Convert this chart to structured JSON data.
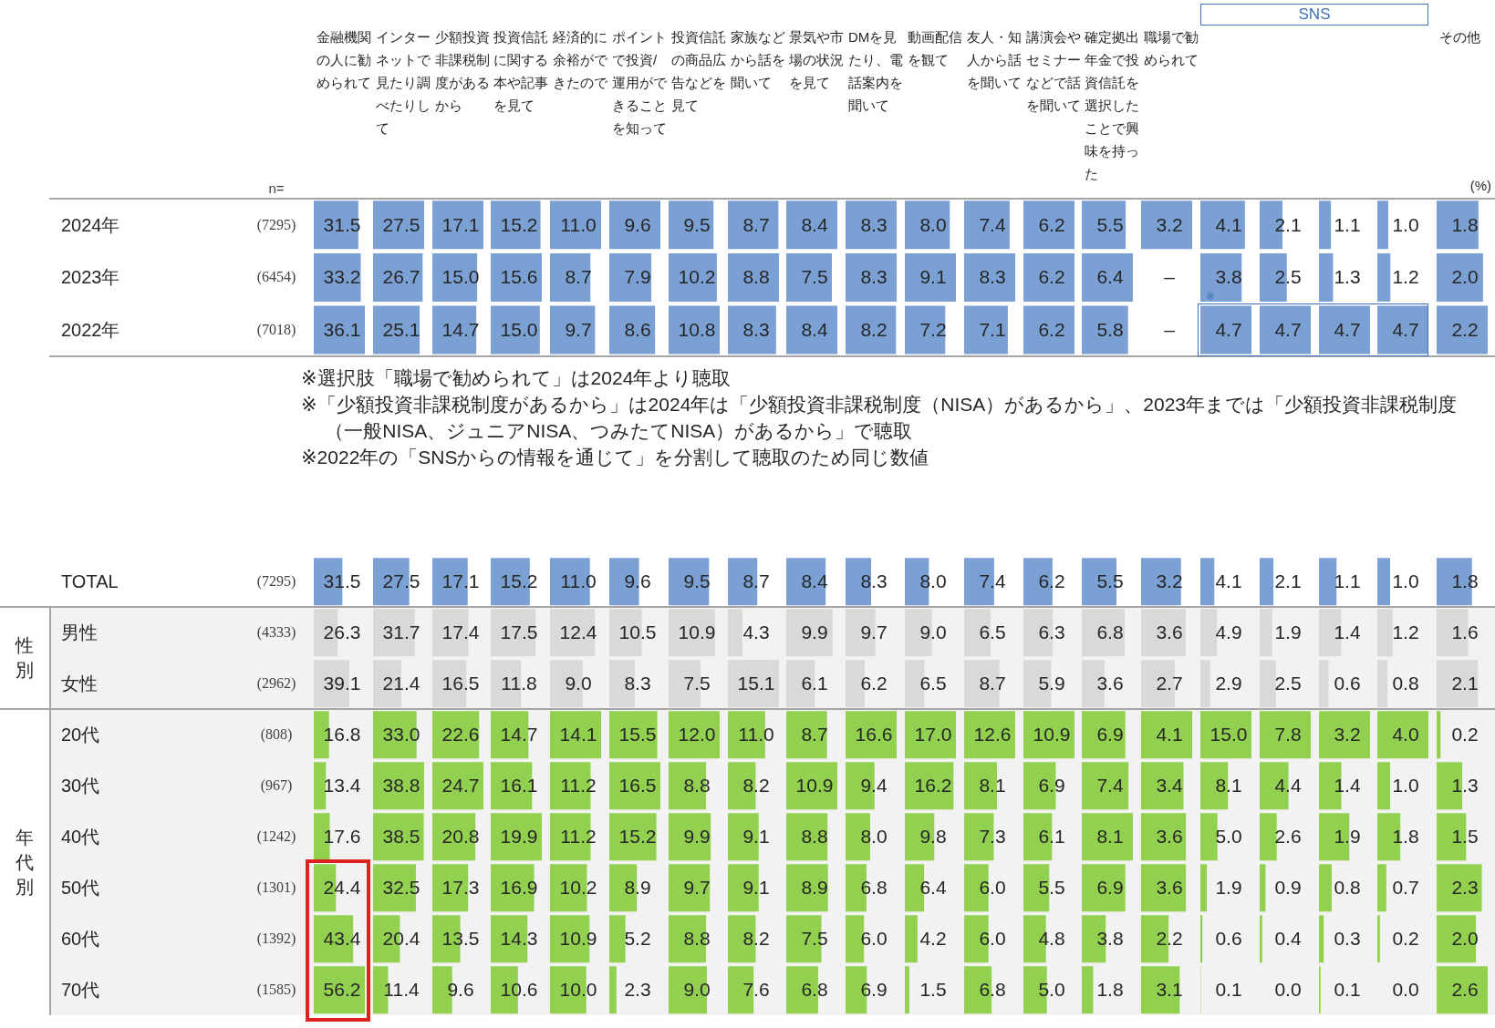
{
  "chart_data": [
    {
      "type": "bar",
      "orientation": "horizontal",
      "title": "金融機関の人に勧められて",
      "categories": [
        "2024年",
        "2023年",
        "2022年"
      ],
      "y2_categories": [
        "(7295)",
        "(6454)",
        "(7018)"
      ],
      "values": [
        31.5,
        33.2,
        36.1
      ],
      "value_labels": [
        "31.5",
        "33.2",
        "36.1"
      ],
      "color": "#7aa0d4",
      "tick_labels": "y",
      "annotations": [
        "n=",
        "※選択肢「職場で勧められて」は2024年より聴取",
        "※「少額投資非課税制度があるから」は2024年は「少額投資非課税制度（NISA）があるから」、2023年までは「少額投資非課税制度（一般NISA、ジュニアNISA、つみたてNISA）があるから」で聴取",
        "※2022年の「SNSからの情報を通じて」を分割して聴取のため同じ数値"
      ]
    },
    {
      "type": "bar",
      "orientation": "horizontal",
      "title": "インターネットで見たり調べたりして",
      "categories": [
        null,
        null,
        null
      ],
      "values": [
        27.5,
        26.7,
        25.1
      ],
      "value_labels": [
        "27.5",
        "26.7",
        "25.1"
      ],
      "color": "#7aa0d4"
    },
    {
      "type": "bar",
      "orientation": "horizontal",
      "title": "少額投資非課税制度があるから",
      "categories": [
        null,
        null,
        null
      ],
      "values": [
        17.1,
        15.0,
        14.7
      ],
      "value_labels": [
        "17.1",
        "15.0",
        "14.7"
      ],
      "color": "#7aa0d4"
    },
    {
      "type": "bar",
      "orientation": "horizontal",
      "title": "投資信託に関する本や記事を見て",
      "categories": [
        null,
        null,
        null
      ],
      "values": [
        15.2,
        15.6,
        15.0
      ],
      "value_labels": [
        "15.2",
        "15.6",
        "15.0"
      ],
      "color": "#7aa0d4"
    },
    {
      "type": "bar",
      "orientation": "horizontal",
      "title": "経済的に余裕ができたので",
      "categories": [
        null,
        null,
        null
      ],
      "values": [
        11.0,
        8.7,
        9.7
      ],
      "value_labels": [
        "11.0",
        "8.7",
        "9.7"
      ],
      "color": "#7aa0d4"
    },
    {
      "type": "bar",
      "orientation": "horizontal",
      "title": "ポイントで投資/運用ができることを知って",
      "categories": [
        null,
        null,
        null
      ],
      "values": [
        9.6,
        7.9,
        8.6
      ],
      "value_labels": [
        "9.6",
        "7.9",
        "8.6"
      ],
      "color": "#7aa0d4"
    },
    {
      "type": "bar",
      "orientation": "horizontal",
      "title": "投資信託の商品広告などを見て",
      "categories": [
        null,
        null,
        null
      ],
      "values": [
        9.5,
        10.2,
        10.8
      ],
      "value_labels": [
        "9.5",
        "10.2",
        "10.8"
      ],
      "color": "#7aa0d4"
    },
    {
      "type": "bar",
      "orientation": "horizontal",
      "title": "家族などから話を聞いて",
      "categories": [
        null,
        null,
        null
      ],
      "values": [
        8.7,
        8.8,
        8.3
      ],
      "value_labels": [
        "8.7",
        "8.8",
        "8.3"
      ],
      "color": "#7aa0d4"
    },
    {
      "type": "bar",
      "orientation": "horizontal",
      "title": "景気や市場の状況を見て",
      "categories": [
        null,
        null,
        null
      ],
      "values": [
        8.4,
        7.5,
        8.4
      ],
      "value_labels": [
        "8.4",
        "7.5",
        "8.4"
      ],
      "color": "#7aa0d4"
    },
    {
      "type": "bar",
      "orientation": "horizontal",
      "title": "DMを見たり、電話案内を聞いて",
      "categories": [
        null,
        null,
        null
      ],
      "values": [
        8.3,
        8.3,
        8.2
      ],
      "value_labels": [
        "8.3",
        "8.3",
        "8.2"
      ],
      "color": "#7aa0d4"
    },
    {
      "type": "bar",
      "orientation": "horizontal",
      "title": "動画配信を観て",
      "categories": [
        null,
        null,
        null
      ],
      "values": [
        8.0,
        9.1,
        7.2
      ],
      "value_labels": [
        "8.0",
        "9.1",
        "7.2"
      ],
      "color": "#7aa0d4"
    },
    {
      "type": "bar",
      "orientation": "horizontal",
      "title": "友人・知人から話を聞いて",
      "categories": [
        null,
        null,
        null
      ],
      "values": [
        7.4,
        8.3,
        7.1
      ],
      "value_labels": [
        "7.4",
        "8.3",
        "7.1"
      ],
      "color": "#7aa0d4"
    },
    {
      "type": "bar",
      "orientation": "horizontal",
      "title": "講演会やセミナーなどで話を聞いて",
      "categories": [
        null,
        null,
        null
      ],
      "values": [
        6.2,
        6.2,
        6.2
      ],
      "value_labels": [
        "6.2",
        "6.2",
        "6.2"
      ],
      "color": "#7aa0d4"
    },
    {
      "type": "bar",
      "orientation": "horizontal",
      "title": "確定拠出年金で投資信託を選択したことで興味を持った",
      "categories": [
        null,
        null,
        null
      ],
      "values": [
        5.5,
        6.4,
        5.8
      ],
      "value_labels": [
        "5.5",
        "6.4",
        "5.8"
      ],
      "color": "#7aa0d4"
    },
    {
      "type": "bar",
      "orientation": "horizontal",
      "title": "職場で勧められて",
      "categories": [
        null,
        null,
        null
      ],
      "values": [
        3.2,
        null,
        null
      ],
      "value_labels": [
        "3.2",
        "–",
        "–"
      ],
      "color": "#7aa0d4"
    },
    {
      "type": "bar",
      "orientation": "horizontal",
      "categories": [
        null,
        null,
        null
      ],
      "values": [
        4.1,
        3.8,
        4.7
      ],
      "value_labels": [
        "4.1",
        "3.8",
        "4.7"
      ],
      "color": "#7aa0d4",
      "annotations": [
        "SNS",
        "※"
      ]
    },
    {
      "type": "bar",
      "orientation": "horizontal",
      "categories": [
        null,
        null,
        null
      ],
      "values": [
        2.1,
        2.5,
        4.7
      ],
      "value_labels": [
        "2.1",
        "2.5",
        "4.7"
      ],
      "color": "#7aa0d4"
    },
    {
      "type": "bar",
      "orientation": "horizontal",
      "categories": [
        null,
        null,
        null
      ],
      "values": [
        1.1,
        1.3,
        4.7
      ],
      "value_labels": [
        "1.1",
        "1.3",
        "4.7"
      ],
      "color": "#7aa0d4"
    },
    {
      "type": "bar",
      "orientation": "horizontal",
      "categories": [
        null,
        null,
        null
      ],
      "values": [
        1.0,
        1.2,
        4.7
      ],
      "value_labels": [
        "1.0",
        "1.2",
        "4.7"
      ],
      "color": "#7aa0d4"
    },
    {
      "type": "bar",
      "orientation": "horizontal",
      "title": "その他",
      "categories": [
        null,
        null,
        null
      ],
      "values": [
        1.8,
        2.0,
        2.2
      ],
      "value_labels": [
        "1.8",
        "2.0",
        "2.2"
      ],
      "color": "#7aa0d4",
      "annotations": [
        "(%)"
      ]
    },
    {
      "type": "bar",
      "orientation": "horizontal",
      "categories": [
        "TOTAL",
        "男性",
        "女性",
        "20代",
        "30代",
        "40代",
        "50代",
        "60代",
        "70代"
      ],
      "y2_categories": [
        "(7295)",
        "(4333)",
        "(2962)",
        "(808)",
        "(967)",
        "(1242)",
        "(1301)",
        "(1392)",
        "(1585)"
      ],
      "values": [
        31.5,
        26.3,
        39.1,
        16.8,
        13.4,
        17.6,
        24.4,
        43.4,
        56.2
      ],
      "value_labels": [
        "31.5",
        "26.3",
        "39.1",
        "16.8",
        "13.4",
        "17.6",
        "24.4",
        "43.4",
        "56.2"
      ],
      "colors": [
        "#7aa0d4",
        "#d9d9d9",
        "#d9d9d9",
        "#92d050",
        "#92d050",
        "#92d050",
        "#92d050",
        "#92d050",
        "#92d050"
      ],
      "tick_labels": "y",
      "bands": [
        {
          "axis": "y",
          "from": "男性",
          "to": "女性",
          "label": "性別",
          "color": "#f2f2f2"
        },
        {
          "axis": "y",
          "from": "20代",
          "to": "70代",
          "label": "年代別",
          "color": "#f2f2f2"
        }
      ]
    },
    {
      "type": "bar",
      "orientation": "horizontal",
      "categories": [
        null,
        null,
        null,
        null,
        null,
        null,
        null,
        null,
        null
      ],
      "values": [
        27.5,
        31.7,
        21.4,
        33.0,
        38.8,
        38.5,
        32.5,
        20.4,
        11.4
      ],
      "value_labels": [
        "27.5",
        "31.7",
        "21.4",
        "33.0",
        "38.8",
        "38.5",
        "32.5",
        "20.4",
        "11.4"
      ],
      "colors": [
        "#7aa0d4",
        "#d9d9d9",
        "#d9d9d9",
        "#92d050",
        "#92d050",
        "#92d050",
        "#92d050",
        "#92d050",
        "#92d050"
      ]
    },
    {
      "type": "bar",
      "orientation": "horizontal",
      "categories": [
        null,
        null,
        null,
        null,
        null,
        null,
        null,
        null,
        null
      ],
      "values": [
        17.1,
        17.4,
        16.5,
        22.6,
        24.7,
        20.8,
        17.3,
        13.5,
        9.6
      ],
      "value_labels": [
        "17.1",
        "17.4",
        "16.5",
        "22.6",
        "24.7",
        "20.8",
        "17.3",
        "13.5",
        "9.6"
      ],
      "colors": [
        "#7aa0d4",
        "#d9d9d9",
        "#d9d9d9",
        "#92d050",
        "#92d050",
        "#92d050",
        "#92d050",
        "#92d050",
        "#92d050"
      ]
    },
    {
      "type": "bar",
      "orientation": "horizontal",
      "categories": [
        null,
        null,
        null,
        null,
        null,
        null,
        null,
        null,
        null
      ],
      "values": [
        15.2,
        17.5,
        11.8,
        14.7,
        16.1,
        19.9,
        16.9,
        14.3,
        10.6
      ],
      "value_labels": [
        "15.2",
        "17.5",
        "11.8",
        "14.7",
        "16.1",
        "19.9",
        "16.9",
        "14.3",
        "10.6"
      ],
      "colors": [
        "#7aa0d4",
        "#d9d9d9",
        "#d9d9d9",
        "#92d050",
        "#92d050",
        "#92d050",
        "#92d050",
        "#92d050",
        "#92d050"
      ]
    },
    {
      "type": "bar",
      "orientation": "horizontal",
      "categories": [
        null,
        null,
        null,
        null,
        null,
        null,
        null,
        null,
        null
      ],
      "values": [
        11.0,
        12.4,
        9.0,
        14.1,
        11.2,
        11.2,
        10.2,
        10.9,
        10.0
      ],
      "value_labels": [
        "11.0",
        "12.4",
        "9.0",
        "14.1",
        "11.2",
        "11.2",
        "10.2",
        "10.9",
        "10.0"
      ],
      "colors": [
        "#7aa0d4",
        "#d9d9d9",
        "#d9d9d9",
        "#92d050",
        "#92d050",
        "#92d050",
        "#92d050",
        "#92d050",
        "#92d050"
      ]
    },
    {
      "type": "bar",
      "orientation": "horizontal",
      "categories": [
        null,
        null,
        null,
        null,
        null,
        null,
        null,
        null,
        null
      ],
      "values": [
        9.6,
        10.5,
        8.3,
        15.5,
        16.5,
        15.2,
        8.9,
        5.2,
        2.3
      ],
      "value_labels": [
        "9.6",
        "10.5",
        "8.3",
        "15.5",
        "16.5",
        "15.2",
        "8.9",
        "5.2",
        "2.3"
      ],
      "colors": [
        "#7aa0d4",
        "#d9d9d9",
        "#d9d9d9",
        "#92d050",
        "#92d050",
        "#92d050",
        "#92d050",
        "#92d050",
        "#92d050"
      ]
    },
    {
      "type": "bar",
      "orientation": "horizontal",
      "categories": [
        null,
        null,
        null,
        null,
        null,
        null,
        null,
        null,
        null
      ],
      "values": [
        9.5,
        10.9,
        7.5,
        12.0,
        8.8,
        9.9,
        9.7,
        8.8,
        9.0
      ],
      "value_labels": [
        "9.5",
        "10.9",
        "7.5",
        "12.0",
        "8.8",
        "9.9",
        "9.7",
        "8.8",
        "9.0"
      ],
      "colors": [
        "#7aa0d4",
        "#d9d9d9",
        "#d9d9d9",
        "#92d050",
        "#92d050",
        "#92d050",
        "#92d050",
        "#92d050",
        "#92d050"
      ]
    },
    {
      "type": "bar",
      "orientation": "horizontal",
      "categories": [
        null,
        null,
        null,
        null,
        null,
        null,
        null,
        null,
        null
      ],
      "values": [
        8.7,
        4.3,
        15.1,
        11.0,
        8.2,
        9.1,
        9.1,
        8.2,
        7.6
      ],
      "value_labels": [
        "8.7",
        "4.3",
        "15.1",
        "11.0",
        "8.2",
        "9.1",
        "9.1",
        "8.2",
        "7.6"
      ],
      "colors": [
        "#7aa0d4",
        "#d9d9d9",
        "#d9d9d9",
        "#92d050",
        "#92d050",
        "#92d050",
        "#92d050",
        "#92d050",
        "#92d050"
      ]
    },
    {
      "type": "bar",
      "orientation": "horizontal",
      "categories": [
        null,
        null,
        null,
        null,
        null,
        null,
        null,
        null,
        null
      ],
      "values": [
        8.4,
        9.9,
        6.1,
        8.7,
        10.9,
        8.8,
        8.9,
        7.5,
        6.8
      ],
      "value_labels": [
        "8.4",
        "9.9",
        "6.1",
        "8.7",
        "10.9",
        "8.8",
        "8.9",
        "7.5",
        "6.8"
      ],
      "colors": [
        "#7aa0d4",
        "#d9d9d9",
        "#d9d9d9",
        "#92d050",
        "#92d050",
        "#92d050",
        "#92d050",
        "#92d050",
        "#92d050"
      ]
    },
    {
      "type": "bar",
      "orientation": "horizontal",
      "categories": [
        null,
        null,
        null,
        null,
        null,
        null,
        null,
        null,
        null
      ],
      "values": [
        8.3,
        9.7,
        6.2,
        16.6,
        9.4,
        8.0,
        6.8,
        6.0,
        6.9
      ],
      "value_labels": [
        "8.3",
        "9.7",
        "6.2",
        "16.6",
        "9.4",
        "8.0",
        "6.8",
        "6.0",
        "6.9"
      ],
      "colors": [
        "#7aa0d4",
        "#d9d9d9",
        "#d9d9d9",
        "#92d050",
        "#92d050",
        "#92d050",
        "#92d050",
        "#92d050",
        "#92d050"
      ]
    },
    {
      "type": "bar",
      "orientation": "horizontal",
      "categories": [
        null,
        null,
        null,
        null,
        null,
        null,
        null,
        null,
        null
      ],
      "values": [
        8.0,
        9.0,
        6.5,
        17.0,
        16.2,
        9.8,
        6.4,
        4.2,
        1.5
      ],
      "value_labels": [
        "8.0",
        "9.0",
        "6.5",
        "17.0",
        "16.2",
        "9.8",
        "6.4",
        "4.2",
        "1.5"
      ],
      "colors": [
        "#7aa0d4",
        "#d9d9d9",
        "#d9d9d9",
        "#92d050",
        "#92d050",
        "#92d050",
        "#92d050",
        "#92d050",
        "#92d050"
      ]
    },
    {
      "type": "bar",
      "orientation": "horizontal",
      "categories": [
        null,
        null,
        null,
        null,
        null,
        null,
        null,
        null,
        null
      ],
      "values": [
        7.4,
        6.5,
        8.7,
        12.6,
        8.1,
        7.3,
        6.0,
        6.0,
        6.8
      ],
      "value_labels": [
        "7.4",
        "6.5",
        "8.7",
        "12.6",
        "8.1",
        "7.3",
        "6.0",
        "6.0",
        "6.8"
      ],
      "colors": [
        "#7aa0d4",
        "#d9d9d9",
        "#d9d9d9",
        "#92d050",
        "#92d050",
        "#92d050",
        "#92d050",
        "#92d050",
        "#92d050"
      ]
    },
    {
      "type": "bar",
      "orientation": "horizontal",
      "categories": [
        null,
        null,
        null,
        null,
        null,
        null,
        null,
        null,
        null
      ],
      "values": [
        6.2,
        6.3,
        5.9,
        10.9,
        6.9,
        6.1,
        5.5,
        4.8,
        5.0
      ],
      "value_labels": [
        "6.2",
        "6.3",
        "5.9",
        "10.9",
        "6.9",
        "6.1",
        "5.5",
        "4.8",
        "5.0"
      ],
      "colors": [
        "#7aa0d4",
        "#d9d9d9",
        "#d9d9d9",
        "#92d050",
        "#92d050",
        "#92d050",
        "#92d050",
        "#92d050",
        "#92d050"
      ]
    },
    {
      "type": "bar",
      "orientation": "horizontal",
      "categories": [
        null,
        null,
        null,
        null,
        null,
        null,
        null,
        null,
        null
      ],
      "values": [
        5.5,
        6.8,
        3.6,
        6.9,
        7.4,
        8.1,
        6.9,
        3.8,
        1.8
      ],
      "value_labels": [
        "5.5",
        "6.8",
        "3.6",
        "6.9",
        "7.4",
        "8.1",
        "6.9",
        "3.8",
        "1.8"
      ],
      "colors": [
        "#7aa0d4",
        "#d9d9d9",
        "#d9d9d9",
        "#92d050",
        "#92d050",
        "#92d050",
        "#92d050",
        "#92d050",
        "#92d050"
      ]
    },
    {
      "type": "bar",
      "orientation": "horizontal",
      "categories": [
        null,
        null,
        null,
        null,
        null,
        null,
        null,
        null,
        null
      ],
      "values": [
        3.2,
        3.6,
        2.7,
        4.1,
        3.4,
        3.6,
        3.6,
        2.2,
        3.1
      ],
      "value_labels": [
        "3.2",
        "3.6",
        "2.7",
        "4.1",
        "3.4",
        "3.6",
        "3.6",
        "2.2",
        "3.1"
      ],
      "colors": [
        "#7aa0d4",
        "#d9d9d9",
        "#d9d9d9",
        "#92d050",
        "#92d050",
        "#92d050",
        "#92d050",
        "#92d050",
        "#92d050"
      ]
    },
    {
      "type": "bar",
      "orientation": "horizontal",
      "categories": [
        null,
        null,
        null,
        null,
        null,
        null,
        null,
        null,
        null
      ],
      "values": [
        4.1,
        4.9,
        2.9,
        15.0,
        8.1,
        5.0,
        1.9,
        0.6,
        0.1
      ],
      "value_labels": [
        "4.1",
        "4.9",
        "2.9",
        "15.0",
        "8.1",
        "5.0",
        "1.9",
        "0.6",
        "0.1"
      ],
      "colors": [
        "#7aa0d4",
        "#d9d9d9",
        "#d9d9d9",
        "#92d050",
        "#92d050",
        "#92d050",
        "#92d050",
        "#92d050",
        "#92d050"
      ]
    },
    {
      "type": "bar",
      "orientation": "horizontal",
      "categories": [
        null,
        null,
        null,
        null,
        null,
        null,
        null,
        null,
        null
      ],
      "values": [
        2.1,
        1.9,
        2.5,
        7.8,
        4.4,
        2.6,
        0.9,
        0.4,
        0.0
      ],
      "value_labels": [
        "2.1",
        "1.9",
        "2.5",
        "7.8",
        "4.4",
        "2.6",
        "0.9",
        "0.4",
        "0.0"
      ],
      "colors": [
        "#7aa0d4",
        "#d9d9d9",
        "#d9d9d9",
        "#92d050",
        "#92d050",
        "#92d050",
        "#92d050",
        "#92d050",
        "#92d050"
      ]
    },
    {
      "type": "bar",
      "orientation": "horizontal",
      "categories": [
        null,
        null,
        null,
        null,
        null,
        null,
        null,
        null,
        null
      ],
      "values": [
        1.1,
        1.4,
        0.6,
        3.2,
        1.4,
        1.9,
        0.8,
        0.3,
        0.1
      ],
      "value_labels": [
        "1.1",
        "1.4",
        "0.6",
        "3.2",
        "1.4",
        "1.9",
        "0.8",
        "0.3",
        "0.1"
      ],
      "colors": [
        "#7aa0d4",
        "#d9d9d9",
        "#d9d9d9",
        "#92d050",
        "#92d050",
        "#92d050",
        "#92d050",
        "#92d050",
        "#92d050"
      ]
    },
    {
      "type": "bar",
      "orientation": "horizontal",
      "categories": [
        null,
        null,
        null,
        null,
        null,
        null,
        null,
        null,
        null
      ],
      "values": [
        1.0,
        1.2,
        0.8,
        4.0,
        1.0,
        1.8,
        0.7,
        0.2,
        0.0
      ],
      "value_labels": [
        "1.0",
        "1.2",
        "0.8",
        "4.0",
        "1.0",
        "1.8",
        "0.7",
        "0.2",
        "0.0"
      ],
      "colors": [
        "#7aa0d4",
        "#d9d9d9",
        "#d9d9d9",
        "#92d050",
        "#92d050",
        "#92d050",
        "#92d050",
        "#92d050",
        "#92d050"
      ]
    },
    {
      "type": "bar",
      "orientation": "horizontal",
      "categories": [
        null,
        null,
        null,
        null,
        null,
        null,
        null,
        null,
        null
      ],
      "values": [
        1.8,
        1.6,
        2.1,
        0.2,
        1.3,
        1.5,
        2.3,
        2.0,
        2.6
      ],
      "value_labels": [
        "1.8",
        "1.6",
        "2.1",
        "0.2",
        "1.3",
        "1.5",
        "2.3",
        "2.0",
        "2.6"
      ],
      "colors": [
        "#7aa0d4",
        "#d9d9d9",
        "#d9d9d9",
        "#92d050",
        "#92d050",
        "#92d050",
        "#92d050",
        "#92d050",
        "#92d050"
      ]
    }
  ]
}
